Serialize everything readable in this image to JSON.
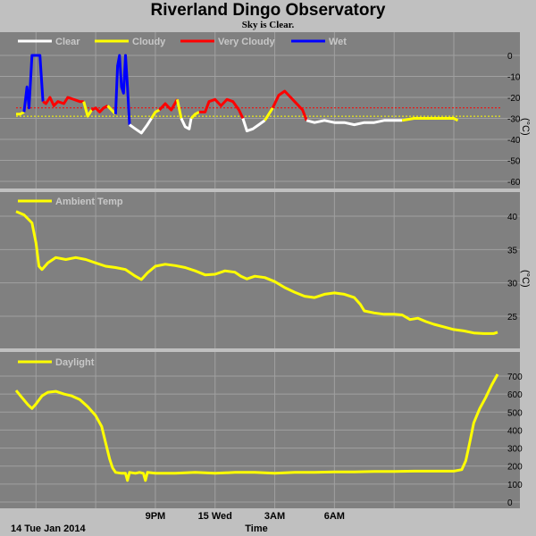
{
  "header": {
    "title": "Riverland Dingo Observatory",
    "subtitle": "Sky is Clear."
  },
  "colors": {
    "background": "#c0c0c0",
    "plot_bg": "#808080",
    "grid": "#a0a0a0",
    "clear": "#ffffff",
    "cloudy": "#ffff00",
    "very_cloudy": "#ff0000",
    "wet": "#0000ff",
    "temp": "#ffff00",
    "daylight": "#ffff00",
    "threshold_red": "#ff0000",
    "threshold_yellow": "#ffff00"
  },
  "chart_data": [
    {
      "type": "line",
      "panel": "sky",
      "legend": [
        "Clear",
        "Cloudy",
        "Very Cloudy",
        "Wet"
      ],
      "ylabel": "(°C)",
      "ylim": [
        -60,
        0
      ],
      "yticks": [
        "0",
        "-10",
        "-20",
        "-30",
        "-40",
        "-50",
        "-60"
      ],
      "thresholds": [
        -25,
        -29
      ],
      "series": [
        {
          "name": "Cloudy",
          "values": [
            [
              2.0,
              -28
            ],
            [
              2.2,
              -28
            ],
            [
              2.4,
              -27
            ]
          ]
        },
        {
          "name": "Wet",
          "values": [
            [
              2.4,
              -27
            ],
            [
              2.55,
              -15
            ],
            [
              2.65,
              -25
            ],
            [
              2.8,
              0
            ],
            [
              3.0,
              0
            ],
            [
              3.2,
              0
            ],
            [
              3.35,
              -22
            ]
          ]
        },
        {
          "name": "Very Cloudy",
          "values": [
            [
              3.35,
              -22
            ],
            [
              3.5,
              -23
            ],
            [
              3.7,
              -20
            ],
            [
              3.9,
              -24
            ],
            [
              4.1,
              -22
            ],
            [
              4.4,
              -23
            ],
            [
              4.6,
              -20
            ],
            [
              4.9,
              -21
            ],
            [
              5.2,
              -22
            ],
            [
              5.4,
              -22
            ]
          ]
        },
        {
          "name": "Cloudy",
          "values": [
            [
              5.4,
              -22
            ],
            [
              5.6,
              -29
            ],
            [
              5.8,
              -26
            ]
          ]
        },
        {
          "name": "Very Cloudy",
          "values": [
            [
              5.8,
              -26
            ],
            [
              6.0,
              -25
            ],
            [
              6.2,
              -27
            ],
            [
              6.4,
              -25
            ],
            [
              6.6,
              -24
            ]
          ]
        },
        {
          "name": "Cloudy",
          "values": [
            [
              6.6,
              -24
            ],
            [
              6.8,
              -26
            ],
            [
              7.0,
              -28
            ]
          ]
        },
        {
          "name": "Wet",
          "values": [
            [
              7.0,
              -28
            ],
            [
              7.1,
              -5
            ],
            [
              7.2,
              0
            ],
            [
              7.3,
              -15
            ],
            [
              7.4,
              -18
            ],
            [
              7.5,
              0
            ],
            [
              7.6,
              -15
            ],
            [
              7.7,
              -33
            ]
          ]
        },
        {
          "name": "Clear",
          "values": [
            [
              7.7,
              -33
            ],
            [
              8.0,
              -35
            ],
            [
              8.3,
              -37
            ],
            [
              8.6,
              -33
            ],
            [
              8.8,
              -30
            ]
          ]
        },
        {
          "name": "Cloudy",
          "values": [
            [
              8.8,
              -30
            ],
            [
              9.0,
              -27
            ],
            [
              9.2,
              -26
            ]
          ]
        },
        {
          "name": "Very Cloudy",
          "values": [
            [
              9.2,
              -26
            ],
            [
              9.5,
              -23
            ],
            [
              9.8,
              -26
            ],
            [
              10.1,
              -21
            ]
          ]
        },
        {
          "name": "Cloudy",
          "values": [
            [
              10.1,
              -21
            ],
            [
              10.3,
              -30
            ]
          ]
        },
        {
          "name": "Clear",
          "values": [
            [
              10.3,
              -30
            ],
            [
              10.5,
              -34
            ],
            [
              10.7,
              -35
            ],
            [
              10.8,
              -30
            ]
          ]
        },
        {
          "name": "Cloudy",
          "values": [
            [
              10.8,
              -30
            ],
            [
              11.0,
              -28
            ],
            [
              11.2,
              -27
            ]
          ]
        },
        {
          "name": "Very Cloudy",
          "values": [
            [
              11.2,
              -27
            ],
            [
              11.5,
              -27
            ],
            [
              11.7,
              -22
            ],
            [
              12.0,
              -21
            ],
            [
              12.3,
              -24
            ],
            [
              12.6,
              -21
            ],
            [
              12.9,
              -22
            ],
            [
              13.2,
              -26
            ],
            [
              13.4,
              -30
            ]
          ]
        },
        {
          "name": "Clear",
          "values": [
            [
              13.4,
              -30
            ],
            [
              13.6,
              -36
            ],
            [
              13.9,
              -35
            ],
            [
              14.2,
              -33
            ],
            [
              14.5,
              -31
            ]
          ]
        },
        {
          "name": "Cloudy",
          "values": [
            [
              14.5,
              -31
            ],
            [
              14.7,
              -28
            ],
            [
              14.9,
              -25
            ]
          ]
        },
        {
          "name": "Very Cloudy",
          "values": [
            [
              14.9,
              -25
            ],
            [
              15.2,
              -19
            ],
            [
              15.5,
              -17
            ],
            [
              15.8,
              -20
            ],
            [
              16.0,
              -22
            ],
            [
              16.2,
              -24
            ],
            [
              16.4,
              -26
            ],
            [
              16.6,
              -31
            ]
          ]
        },
        {
          "name": "Clear",
          "values": [
            [
              16.6,
              -31
            ],
            [
              17.0,
              -32
            ],
            [
              17.5,
              -31
            ],
            [
              18.0,
              -32
            ],
            [
              18.5,
              -32
            ],
            [
              19.0,
              -33
            ],
            [
              19.5,
              -32
            ],
            [
              20.0,
              -32
            ],
            [
              20.5,
              -31
            ],
            [
              21.0,
              -31
            ],
            [
              21.4,
              -31
            ]
          ]
        },
        {
          "name": "Cloudy",
          "values": [
            [
              21.4,
              -31
            ],
            [
              22.0,
              -30
            ],
            [
              22.5,
              -30
            ],
            [
              23.0,
              -30
            ],
            [
              23.5,
              -30
            ],
            [
              24.0,
              -30
            ],
            [
              24.2,
              -31
            ]
          ]
        }
      ]
    },
    {
      "type": "line",
      "panel": "temp",
      "legend": [
        "Ambient Temp"
      ],
      "ylim": [
        22,
        42
      ],
      "yticks": [
        "40",
        "35",
        "30",
        "25"
      ],
      "ylabel": "(°C)",
      "series": [
        {
          "name": "Ambient Temp",
          "values": [
            [
              2.0,
              40.7
            ],
            [
              2.4,
              40.2
            ],
            [
              2.8,
              39
            ],
            [
              3.0,
              36
            ],
            [
              3.15,
              32.5
            ],
            [
              3.3,
              32
            ],
            [
              3.6,
              33
            ],
            [
              4.0,
              33.8
            ],
            [
              4.5,
              33.5
            ],
            [
              5.0,
              33.8
            ],
            [
              5.5,
              33.5
            ],
            [
              6.0,
              33
            ],
            [
              6.5,
              32.5
            ],
            [
              7.0,
              32.3
            ],
            [
              7.5,
              32
            ],
            [
              8.0,
              31
            ],
            [
              8.3,
              30.5
            ],
            [
              8.6,
              31.5
            ],
            [
              9.0,
              32.5
            ],
            [
              9.5,
              32.8
            ],
            [
              10.0,
              32.6
            ],
            [
              10.5,
              32.3
            ],
            [
              11.0,
              31.8
            ],
            [
              11.5,
              31.2
            ],
            [
              12.0,
              31.3
            ],
            [
              12.5,
              31.8
            ],
            [
              13.0,
              31.6
            ],
            [
              13.3,
              31
            ],
            [
              13.6,
              30.6
            ],
            [
              14.0,
              31
            ],
            [
              14.5,
              30.8
            ],
            [
              15.0,
              30.2
            ],
            [
              15.5,
              29.3
            ],
            [
              16.0,
              28.6
            ],
            [
              16.5,
              28
            ],
            [
              17.0,
              27.8
            ],
            [
              17.5,
              28.3
            ],
            [
              18.0,
              28.5
            ],
            [
              18.5,
              28.3
            ],
            [
              19.0,
              27.8
            ],
            [
              19.3,
              26.8
            ],
            [
              19.5,
              25.8
            ],
            [
              20.0,
              25.5
            ],
            [
              20.5,
              25.3
            ],
            [
              21.0,
              25.3
            ],
            [
              21.4,
              25.2
            ],
            [
              21.8,
              24.5
            ],
            [
              22.2,
              24.7
            ],
            [
              22.6,
              24.2
            ],
            [
              23.0,
              23.8
            ],
            [
              23.5,
              23.4
            ],
            [
              24.0,
              23.0
            ],
            [
              24.5,
              22.8
            ],
            [
              25.0,
              22.5
            ],
            [
              25.5,
              22.4
            ],
            [
              26.0,
              22.4
            ],
            [
              26.2,
              22.6
            ]
          ]
        }
      ]
    },
    {
      "type": "line",
      "panel": "daylight",
      "legend": [
        "Daylight"
      ],
      "ylim": [
        0,
        700
      ],
      "yticks": [
        "700",
        "600",
        "500",
        "400",
        "300",
        "200",
        "100",
        "0"
      ],
      "series": [
        {
          "name": "Daylight",
          "values": [
            [
              2.0,
              620
            ],
            [
              2.3,
              580
            ],
            [
              2.6,
              540
            ],
            [
              2.8,
              520
            ],
            [
              3.0,
              545
            ],
            [
              3.3,
              590
            ],
            [
              3.6,
              610
            ],
            [
              4.0,
              615
            ],
            [
              4.4,
              600
            ],
            [
              4.8,
              590
            ],
            [
              5.2,
              570
            ],
            [
              5.6,
              530
            ],
            [
              6.0,
              480
            ],
            [
              6.3,
              420
            ],
            [
              6.5,
              330
            ],
            [
              6.7,
              240
            ],
            [
              6.85,
              190
            ],
            [
              7.0,
              165
            ],
            [
              7.3,
              160
            ],
            [
              7.5,
              160
            ],
            [
              7.6,
              120
            ],
            [
              7.7,
              165
            ],
            [
              8.0,
              160
            ],
            [
              8.2,
              165
            ],
            [
              8.4,
              160
            ],
            [
              8.5,
              120
            ],
            [
              8.6,
              165
            ],
            [
              9.0,
              160
            ],
            [
              10.0,
              160
            ],
            [
              11.0,
              165
            ],
            [
              12.0,
              160
            ],
            [
              13.0,
              165
            ],
            [
              14.0,
              165
            ],
            [
              15.0,
              160
            ],
            [
              16.0,
              165
            ],
            [
              17.0,
              165
            ],
            [
              18.0,
              168
            ],
            [
              19.0,
              168
            ],
            [
              20.0,
              170
            ],
            [
              21.0,
              170
            ],
            [
              22.0,
              172
            ],
            [
              23.0,
              172
            ],
            [
              24.0,
              172
            ],
            [
              24.4,
              180
            ],
            [
              24.6,
              230
            ],
            [
              24.8,
              330
            ],
            [
              25.0,
              440
            ],
            [
              25.3,
              520
            ],
            [
              25.6,
              580
            ],
            [
              25.9,
              650
            ],
            [
              26.2,
              710
            ]
          ]
        }
      ]
    }
  ],
  "axes": {
    "x_ticks": [
      "9PM",
      "15 Wed",
      "3AM",
      "6AM"
    ],
    "x_tick_hours": [
      9,
      12,
      15,
      18
    ],
    "x_grid_hours": [
      3,
      6,
      9,
      12,
      15,
      18,
      21,
      24
    ],
    "start_label": "14 Tue Jan 2014",
    "xlabel": "Time"
  }
}
